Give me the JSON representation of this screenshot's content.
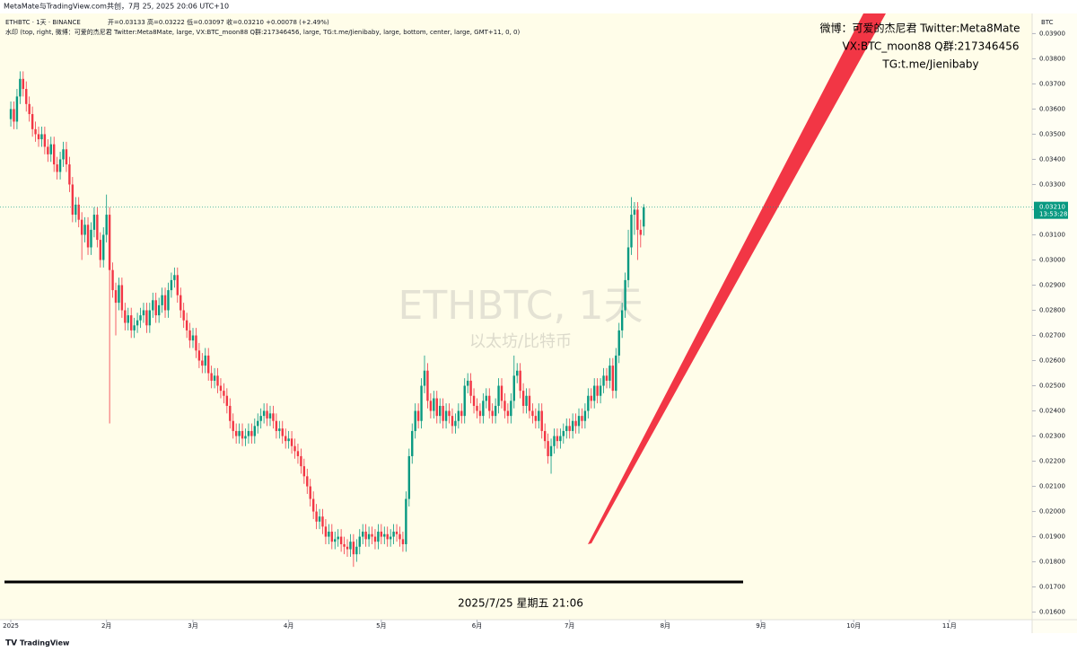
{
  "header": {
    "credit": "MetaMate与TradingView.com共创，7月 25, 2025 20:06 UTC+10",
    "symbol_line": "ETHBTC · 1天 · BINANCE",
    "ohlc_line": "开=0.03133 高=0.03222 低=0.03097 收=0.03210 +0.00078 (+2.49%)",
    "watermark_line": "水印 (top, right, 微博：可爱的杰尼君 Twitter:Meta8Mate, large, VX:BTC_moon88 Q群:217346456, large, TG:t.me/Jienibaby, large, bottom, center, large, GMT+11, 0, 0)"
  },
  "watermark": {
    "top_right": [
      "微博：可爱的杰尼君 Twitter:Meta8Mate",
      "VX:BTC_moon88 Q群:217346456",
      "TG:t.me/Jienibaby"
    ],
    "center_title": "ETHBTC, 1天",
    "center_subtitle": "以太坊/比特币",
    "bottom": "2025/7/25 星期五 21:06"
  },
  "footer": {
    "brand": "TradingView"
  },
  "chart_data": {
    "type": "candlestick",
    "currency": "BTC",
    "last_price_label": "0.03210",
    "countdown": "13:53:28",
    "up_color": "#089981",
    "down_color": "#f23645",
    "xlim": [
      -3.5,
      330.8
    ],
    "ylim": [
      0.0157,
      0.0398
    ],
    "xticks": [
      {
        "value": 0,
        "label": "2025"
      },
      {
        "value": 31,
        "label": "2月"
      },
      {
        "value": 59,
        "label": "3月"
      },
      {
        "value": 90,
        "label": "4月"
      },
      {
        "value": 120,
        "label": "5月"
      },
      {
        "value": 151,
        "label": "6月"
      },
      {
        "value": 181,
        "label": "7月"
      },
      {
        "value": 212,
        "label": "8月"
      },
      {
        "value": 243,
        "label": "9月"
      },
      {
        "value": 273,
        "label": "10月"
      },
      {
        "value": 304,
        "label": "11月"
      }
    ],
    "yticks": [
      {
        "value": 0.016,
        "label": "0.01600"
      },
      {
        "value": 0.017,
        "label": "0.01700"
      },
      {
        "value": 0.018,
        "label": "0.01800"
      },
      {
        "value": 0.019,
        "label": "0.01900"
      },
      {
        "value": 0.02,
        "label": "0.02000"
      },
      {
        "value": 0.021,
        "label": "0.02100"
      },
      {
        "value": 0.022,
        "label": "0.02200"
      },
      {
        "value": 0.023,
        "label": "0.02300"
      },
      {
        "value": 0.024,
        "label": "0.02400"
      },
      {
        "value": 0.025,
        "label": "0.02500"
      },
      {
        "value": 0.026,
        "label": "0.02600"
      },
      {
        "value": 0.027,
        "label": "0.02700"
      },
      {
        "value": 0.028,
        "label": "0.02800"
      },
      {
        "value": 0.029,
        "label": "0.02900"
      },
      {
        "value": 0.03,
        "label": "0.03000"
      },
      {
        "value": 0.031,
        "label": "0.03100"
      },
      {
        "value": 0.032,
        "label": "0.03200"
      },
      {
        "value": 0.033,
        "label": "0.03300"
      },
      {
        "value": 0.034,
        "label": "0.03400"
      },
      {
        "value": 0.035,
        "label": "0.03500"
      },
      {
        "value": 0.036,
        "label": "0.03600"
      },
      {
        "value": 0.037,
        "label": "0.03700"
      },
      {
        "value": 0.038,
        "label": "0.03800"
      },
      {
        "value": 0.039,
        "label": "0.03900"
      }
    ],
    "candles": [
      [
        0.0356,
        0.0363,
        0.0353,
        0.036
      ],
      [
        0.036,
        0.0363,
        0.0352,
        0.0355
      ],
      [
        0.0355,
        0.0368,
        0.0352,
        0.0365
      ],
      [
        0.0365,
        0.0375,
        0.0362,
        0.0372
      ],
      [
        0.0372,
        0.0375,
        0.0365,
        0.0368
      ],
      [
        0.0368,
        0.0371,
        0.0359,
        0.0362
      ],
      [
        0.0362,
        0.0365,
        0.0355,
        0.0358
      ],
      [
        0.0358,
        0.0361,
        0.0349,
        0.0352
      ],
      [
        0.0352,
        0.0355,
        0.0347,
        0.035
      ],
      [
        0.035,
        0.0353,
        0.0345,
        0.0348
      ],
      [
        0.0348,
        0.0353,
        0.0345,
        0.035
      ],
      [
        0.035,
        0.0353,
        0.0342,
        0.0345
      ],
      [
        0.0345,
        0.0348,
        0.0339,
        0.0342
      ],
      [
        0.0342,
        0.0349,
        0.0339,
        0.0346
      ],
      [
        0.0346,
        0.0349,
        0.0335,
        0.0338
      ],
      [
        0.0338,
        0.0341,
        0.0332,
        0.0335
      ],
      [
        0.0335,
        0.0343,
        0.0332,
        0.034
      ],
      [
        0.034,
        0.0347,
        0.0337,
        0.0344
      ],
      [
        0.0344,
        0.0347,
        0.0335,
        0.0338
      ],
      [
        0.0338,
        0.0341,
        0.0327,
        0.033
      ],
      [
        0.033,
        0.0333,
        0.0315,
        0.0318
      ],
      [
        0.0318,
        0.0325,
        0.0315,
        0.0322
      ],
      [
        0.0322,
        0.0325,
        0.0313,
        0.0316
      ],
      [
        0.0316,
        0.0319,
        0.03,
        0.031
      ],
      [
        0.031,
        0.0317,
        0.0307,
        0.0314
      ],
      [
        0.0314,
        0.0317,
        0.0302,
        0.0305
      ],
      [
        0.0305,
        0.0315,
        0.0302,
        0.0312
      ],
      [
        0.0312,
        0.0321,
        0.0309,
        0.0318
      ],
      [
        0.0318,
        0.0321,
        0.0305,
        0.0308
      ],
      [
        0.0308,
        0.0311,
        0.0297,
        0.03
      ],
      [
        0.03,
        0.0313,
        0.0297,
        0.031
      ],
      [
        0.031,
        0.0326,
        0.0307,
        0.0318
      ],
      [
        0.0318,
        0.0321,
        0.0235,
        0.0296
      ],
      [
        0.0296,
        0.0299,
        0.0285,
        0.0288
      ],
      [
        0.0288,
        0.0291,
        0.027,
        0.0283
      ],
      [
        0.0283,
        0.0293,
        0.028,
        0.029
      ],
      [
        0.029,
        0.0293,
        0.0277,
        0.028
      ],
      [
        0.028,
        0.0283,
        0.0272,
        0.0275
      ],
      [
        0.0275,
        0.0281,
        0.0272,
        0.0278
      ],
      [
        0.0278,
        0.0281,
        0.0269,
        0.0272
      ],
      [
        0.0272,
        0.0277,
        0.0269,
        0.0274
      ],
      [
        0.0274,
        0.0279,
        0.0271,
        0.0276
      ],
      [
        0.0276,
        0.0281,
        0.0273,
        0.0278
      ],
      [
        0.0278,
        0.0283,
        0.0275,
        0.028
      ],
      [
        0.028,
        0.0283,
        0.0271,
        0.0274
      ],
      [
        0.0274,
        0.0283,
        0.0271,
        0.028
      ],
      [
        0.028,
        0.0287,
        0.0277,
        0.0284
      ],
      [
        0.0284,
        0.0287,
        0.0275,
        0.0278
      ],
      [
        0.0278,
        0.0285,
        0.0275,
        0.0282
      ],
      [
        0.0282,
        0.0289,
        0.0279,
        0.0286
      ],
      [
        0.0286,
        0.0289,
        0.0277,
        0.028
      ],
      [
        0.028,
        0.0291,
        0.0277,
        0.0288
      ],
      [
        0.0288,
        0.0295,
        0.0285,
        0.0292
      ],
      [
        0.0292,
        0.0297,
        0.0289,
        0.0294
      ],
      [
        0.0294,
        0.0297,
        0.0283,
        0.0286
      ],
      [
        0.0286,
        0.0289,
        0.0277,
        0.028
      ],
      [
        0.028,
        0.0283,
        0.0273,
        0.0276
      ],
      [
        0.0276,
        0.0279,
        0.0269,
        0.0272
      ],
      [
        0.0272,
        0.0275,
        0.0265,
        0.0268
      ],
      [
        0.0268,
        0.0273,
        0.0265,
        0.027
      ],
      [
        0.027,
        0.0273,
        0.0261,
        0.0264
      ],
      [
        0.0264,
        0.0267,
        0.0257,
        0.026
      ],
      [
        0.026,
        0.0263,
        0.0255,
        0.0258
      ],
      [
        0.0258,
        0.0265,
        0.0255,
        0.0262
      ],
      [
        0.0262,
        0.0265,
        0.0252,
        0.0255
      ],
      [
        0.0255,
        0.0258,
        0.0249,
        0.0252
      ],
      [
        0.0252,
        0.0257,
        0.0249,
        0.0254
      ],
      [
        0.0254,
        0.0257,
        0.0247,
        0.025
      ],
      [
        0.025,
        0.0253,
        0.0245,
        0.0248
      ],
      [
        0.0248,
        0.0251,
        0.0243,
        0.0246
      ],
      [
        0.0246,
        0.0249,
        0.0239,
        0.0242
      ],
      [
        0.0242,
        0.0245,
        0.0233,
        0.0236
      ],
      [
        0.0236,
        0.0239,
        0.0229,
        0.0232
      ],
      [
        0.0232,
        0.0235,
        0.0227,
        0.023
      ],
      [
        0.023,
        0.0235,
        0.0227,
        0.0232
      ],
      [
        0.0232,
        0.0235,
        0.0226,
        0.0229
      ],
      [
        0.0229,
        0.0233,
        0.0226,
        0.023
      ],
      [
        0.023,
        0.0235,
        0.0227,
        0.0232
      ],
      [
        0.0232,
        0.0235,
        0.0227,
        0.023
      ],
      [
        0.023,
        0.0237,
        0.0227,
        0.0234
      ],
      [
        0.0234,
        0.0239,
        0.0231,
        0.0236
      ],
      [
        0.0236,
        0.0241,
        0.0233,
        0.0238
      ],
      [
        0.0238,
        0.0243,
        0.0235,
        0.024
      ],
      [
        0.024,
        0.0243,
        0.0234,
        0.0237
      ],
      [
        0.0237,
        0.0242,
        0.0234,
        0.0239
      ],
      [
        0.0239,
        0.0242,
        0.0233,
        0.0236
      ],
      [
        0.0236,
        0.0239,
        0.0229,
        0.0232
      ],
      [
        0.0232,
        0.0236,
        0.0229,
        0.0233
      ],
      [
        0.0233,
        0.0236,
        0.0227,
        0.023
      ],
      [
        0.023,
        0.0233,
        0.0225,
        0.0228
      ],
      [
        0.0228,
        0.0232,
        0.0225,
        0.0229
      ],
      [
        0.0229,
        0.0232,
        0.0223,
        0.0226
      ],
      [
        0.0226,
        0.0229,
        0.0221,
        0.0224
      ],
      [
        0.0224,
        0.0227,
        0.0219,
        0.0222
      ],
      [
        0.0222,
        0.0225,
        0.0215,
        0.0218
      ],
      [
        0.0218,
        0.0221,
        0.0211,
        0.0214
      ],
      [
        0.0214,
        0.0217,
        0.0207,
        0.021
      ],
      [
        0.021,
        0.0213,
        0.0202,
        0.0205
      ],
      [
        0.0205,
        0.0208,
        0.0197,
        0.02
      ],
      [
        0.02,
        0.0203,
        0.0193,
        0.0196
      ],
      [
        0.0196,
        0.0201,
        0.0193,
        0.0198
      ],
      [
        0.0198,
        0.0201,
        0.0191,
        0.0194
      ],
      [
        0.0194,
        0.0197,
        0.0187,
        0.019
      ],
      [
        0.019,
        0.0195,
        0.0187,
        0.0192
      ],
      [
        0.0192,
        0.0195,
        0.0185,
        0.0188
      ],
      [
        0.0188,
        0.0192,
        0.0185,
        0.0189
      ],
      [
        0.0189,
        0.0193,
        0.0186,
        0.019
      ],
      [
        0.019,
        0.0193,
        0.0184,
        0.0187
      ],
      [
        0.0187,
        0.019,
        0.0183,
        0.0186
      ],
      [
        0.0186,
        0.0189,
        0.0182,
        0.0185
      ],
      [
        0.0185,
        0.0191,
        0.0182,
        0.0188
      ],
      [
        0.0188,
        0.0191,
        0.0178,
        0.0183
      ],
      [
        0.0183,
        0.0189,
        0.018,
        0.0186
      ],
      [
        0.0186,
        0.0193,
        0.0183,
        0.019
      ],
      [
        0.019,
        0.0195,
        0.0187,
        0.0192
      ],
      [
        0.0192,
        0.0195,
        0.0186,
        0.0189
      ],
      [
        0.0189,
        0.0194,
        0.0186,
        0.0191
      ],
      [
        0.0191,
        0.0194,
        0.0187,
        0.019
      ],
      [
        0.019,
        0.0193,
        0.0185,
        0.0188
      ],
      [
        0.0188,
        0.0195,
        0.0185,
        0.0192
      ],
      [
        0.0192,
        0.0195,
        0.0187,
        0.019
      ],
      [
        0.019,
        0.0194,
        0.0187,
        0.0191
      ],
      [
        0.0191,
        0.0194,
        0.0186,
        0.0189
      ],
      [
        0.0189,
        0.0193,
        0.0186,
        0.019
      ],
      [
        0.019,
        0.0195,
        0.0187,
        0.0192
      ],
      [
        0.0192,
        0.0195,
        0.0188,
        0.0191
      ],
      [
        0.0191,
        0.0194,
        0.0186,
        0.0189
      ],
      [
        0.0189,
        0.0192,
        0.0184,
        0.0187
      ],
      [
        0.0187,
        0.0208,
        0.0184,
        0.0205
      ],
      [
        0.0205,
        0.0225,
        0.0202,
        0.0222
      ],
      [
        0.0222,
        0.0235,
        0.0219,
        0.0232
      ],
      [
        0.0232,
        0.0243,
        0.0229,
        0.024
      ],
      [
        0.024,
        0.0243,
        0.0233,
        0.0236
      ],
      [
        0.0236,
        0.0253,
        0.0233,
        0.025
      ],
      [
        0.025,
        0.0262,
        0.0247,
        0.0256
      ],
      [
        0.0256,
        0.0259,
        0.0241,
        0.0244
      ],
      [
        0.0244,
        0.0247,
        0.0237,
        0.024
      ],
      [
        0.024,
        0.0248,
        0.0237,
        0.0245
      ],
      [
        0.0245,
        0.0248,
        0.0235,
        0.0238
      ],
      [
        0.0238,
        0.0245,
        0.0235,
        0.0242
      ],
      [
        0.0242,
        0.0245,
        0.0233,
        0.0236
      ],
      [
        0.0236,
        0.0243,
        0.0233,
        0.024
      ],
      [
        0.024,
        0.0243,
        0.0235,
        0.0238
      ],
      [
        0.0238,
        0.0241,
        0.0231,
        0.0234
      ],
      [
        0.0234,
        0.0239,
        0.0231,
        0.0236
      ],
      [
        0.0236,
        0.0243,
        0.0233,
        0.024
      ],
      [
        0.024,
        0.0243,
        0.0235,
        0.0238
      ],
      [
        0.0238,
        0.0253,
        0.0235,
        0.025
      ],
      [
        0.025,
        0.0255,
        0.0247,
        0.0252
      ],
      [
        0.0252,
        0.0255,
        0.0243,
        0.0246
      ],
      [
        0.0246,
        0.0249,
        0.0239,
        0.0242
      ],
      [
        0.0242,
        0.0245,
        0.0237,
        0.024
      ],
      [
        0.024,
        0.0243,
        0.0235,
        0.0238
      ],
      [
        0.0238,
        0.0247,
        0.0235,
        0.0244
      ],
      [
        0.0244,
        0.0249,
        0.0241,
        0.0246
      ],
      [
        0.0246,
        0.0249,
        0.0237,
        0.024
      ],
      [
        0.024,
        0.0243,
        0.0235,
        0.0238
      ],
      [
        0.0238,
        0.0245,
        0.0235,
        0.0242
      ],
      [
        0.0242,
        0.0253,
        0.0239,
        0.025
      ],
      [
        0.025,
        0.0253,
        0.0241,
        0.0244
      ],
      [
        0.0244,
        0.0247,
        0.0237,
        0.024
      ],
      [
        0.024,
        0.0243,
        0.0235,
        0.0238
      ],
      [
        0.0238,
        0.0247,
        0.0235,
        0.0244
      ],
      [
        0.0244,
        0.0262,
        0.0241,
        0.0254
      ],
      [
        0.0254,
        0.0259,
        0.0251,
        0.0256
      ],
      [
        0.0256,
        0.0259,
        0.0245,
        0.0248
      ],
      [
        0.0248,
        0.0251,
        0.0239,
        0.0242
      ],
      [
        0.0242,
        0.0249,
        0.0239,
        0.0246
      ],
      [
        0.0246,
        0.0249,
        0.0237,
        0.024
      ],
      [
        0.024,
        0.0243,
        0.0235,
        0.0238
      ],
      [
        0.0238,
        0.0241,
        0.0233,
        0.0236
      ],
      [
        0.0236,
        0.0243,
        0.0233,
        0.024
      ],
      [
        0.024,
        0.0243,
        0.0229,
        0.0232
      ],
      [
        0.0232,
        0.0235,
        0.0225,
        0.0228
      ],
      [
        0.0228,
        0.0231,
        0.0219,
        0.0222
      ],
      [
        0.0222,
        0.0229,
        0.0215,
        0.0226
      ],
      [
        0.0226,
        0.0233,
        0.0223,
        0.023
      ],
      [
        0.023,
        0.0233,
        0.0225,
        0.0228
      ],
      [
        0.0228,
        0.0233,
        0.0225,
        0.023
      ],
      [
        0.023,
        0.0235,
        0.0227,
        0.0232
      ],
      [
        0.0232,
        0.0237,
        0.0229,
        0.0234
      ],
      [
        0.0234,
        0.0237,
        0.0229,
        0.0232
      ],
      [
        0.0232,
        0.0239,
        0.0229,
        0.0236
      ],
      [
        0.0236,
        0.0239,
        0.0231,
        0.0234
      ],
      [
        0.0234,
        0.0241,
        0.0231,
        0.0238
      ],
      [
        0.0238,
        0.0241,
        0.0233,
        0.0236
      ],
      [
        0.0236,
        0.0243,
        0.0233,
        0.024
      ],
      [
        0.024,
        0.0249,
        0.0237,
        0.0246
      ],
      [
        0.0246,
        0.0249,
        0.0241,
        0.0244
      ],
      [
        0.0244,
        0.0253,
        0.0241,
        0.025
      ],
      [
        0.025,
        0.0253,
        0.0243,
        0.0246
      ],
      [
        0.0246,
        0.0253,
        0.0243,
        0.025
      ],
      [
        0.025,
        0.0257,
        0.0247,
        0.0254
      ],
      [
        0.0254,
        0.0257,
        0.0249,
        0.0252
      ],
      [
        0.0252,
        0.0261,
        0.0249,
        0.0258
      ],
      [
        0.0258,
        0.0261,
        0.0245,
        0.0248
      ],
      [
        0.0248,
        0.0265,
        0.0245,
        0.0262
      ],
      [
        0.0262,
        0.0275,
        0.0259,
        0.0272
      ],
      [
        0.0272,
        0.0283,
        0.0269,
        0.028
      ],
      [
        0.028,
        0.0295,
        0.0277,
        0.0292
      ],
      [
        0.0292,
        0.0312,
        0.0289,
        0.0305
      ],
      [
        0.0305,
        0.0325,
        0.0302,
        0.0318
      ],
      [
        0.0318,
        0.0323,
        0.031,
        0.032
      ],
      [
        0.032,
        0.0323,
        0.03,
        0.0312
      ],
      [
        0.0312,
        0.0316,
        0.0305,
        0.031
      ],
      [
        0.03133,
        0.03222,
        0.03097,
        0.0321
      ]
    ]
  }
}
